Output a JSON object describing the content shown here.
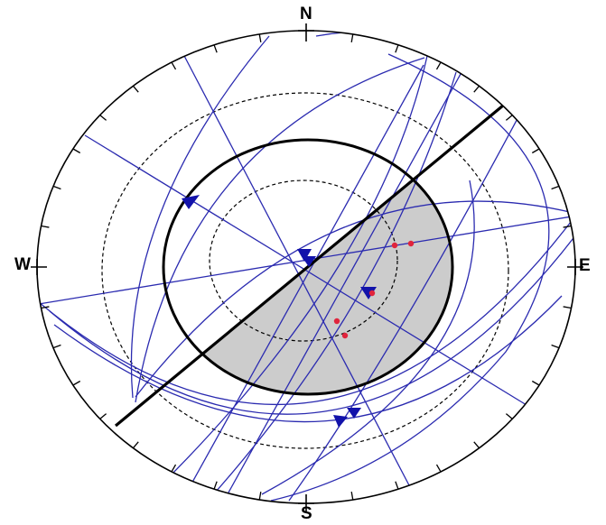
{
  "compass": {
    "north": "N",
    "south": "S",
    "west": "W",
    "east": "E"
  },
  "colors": {
    "primitive": "#000000",
    "great_circles": "#2b2bb0",
    "poles": "#1212aa",
    "intersections": "#e0243c",
    "shaded_region": "#cccccc",
    "contours": "#000000"
  },
  "icons": {
    "pole_marker": "triangle-down",
    "intersection_marker": "dot"
  }
}
